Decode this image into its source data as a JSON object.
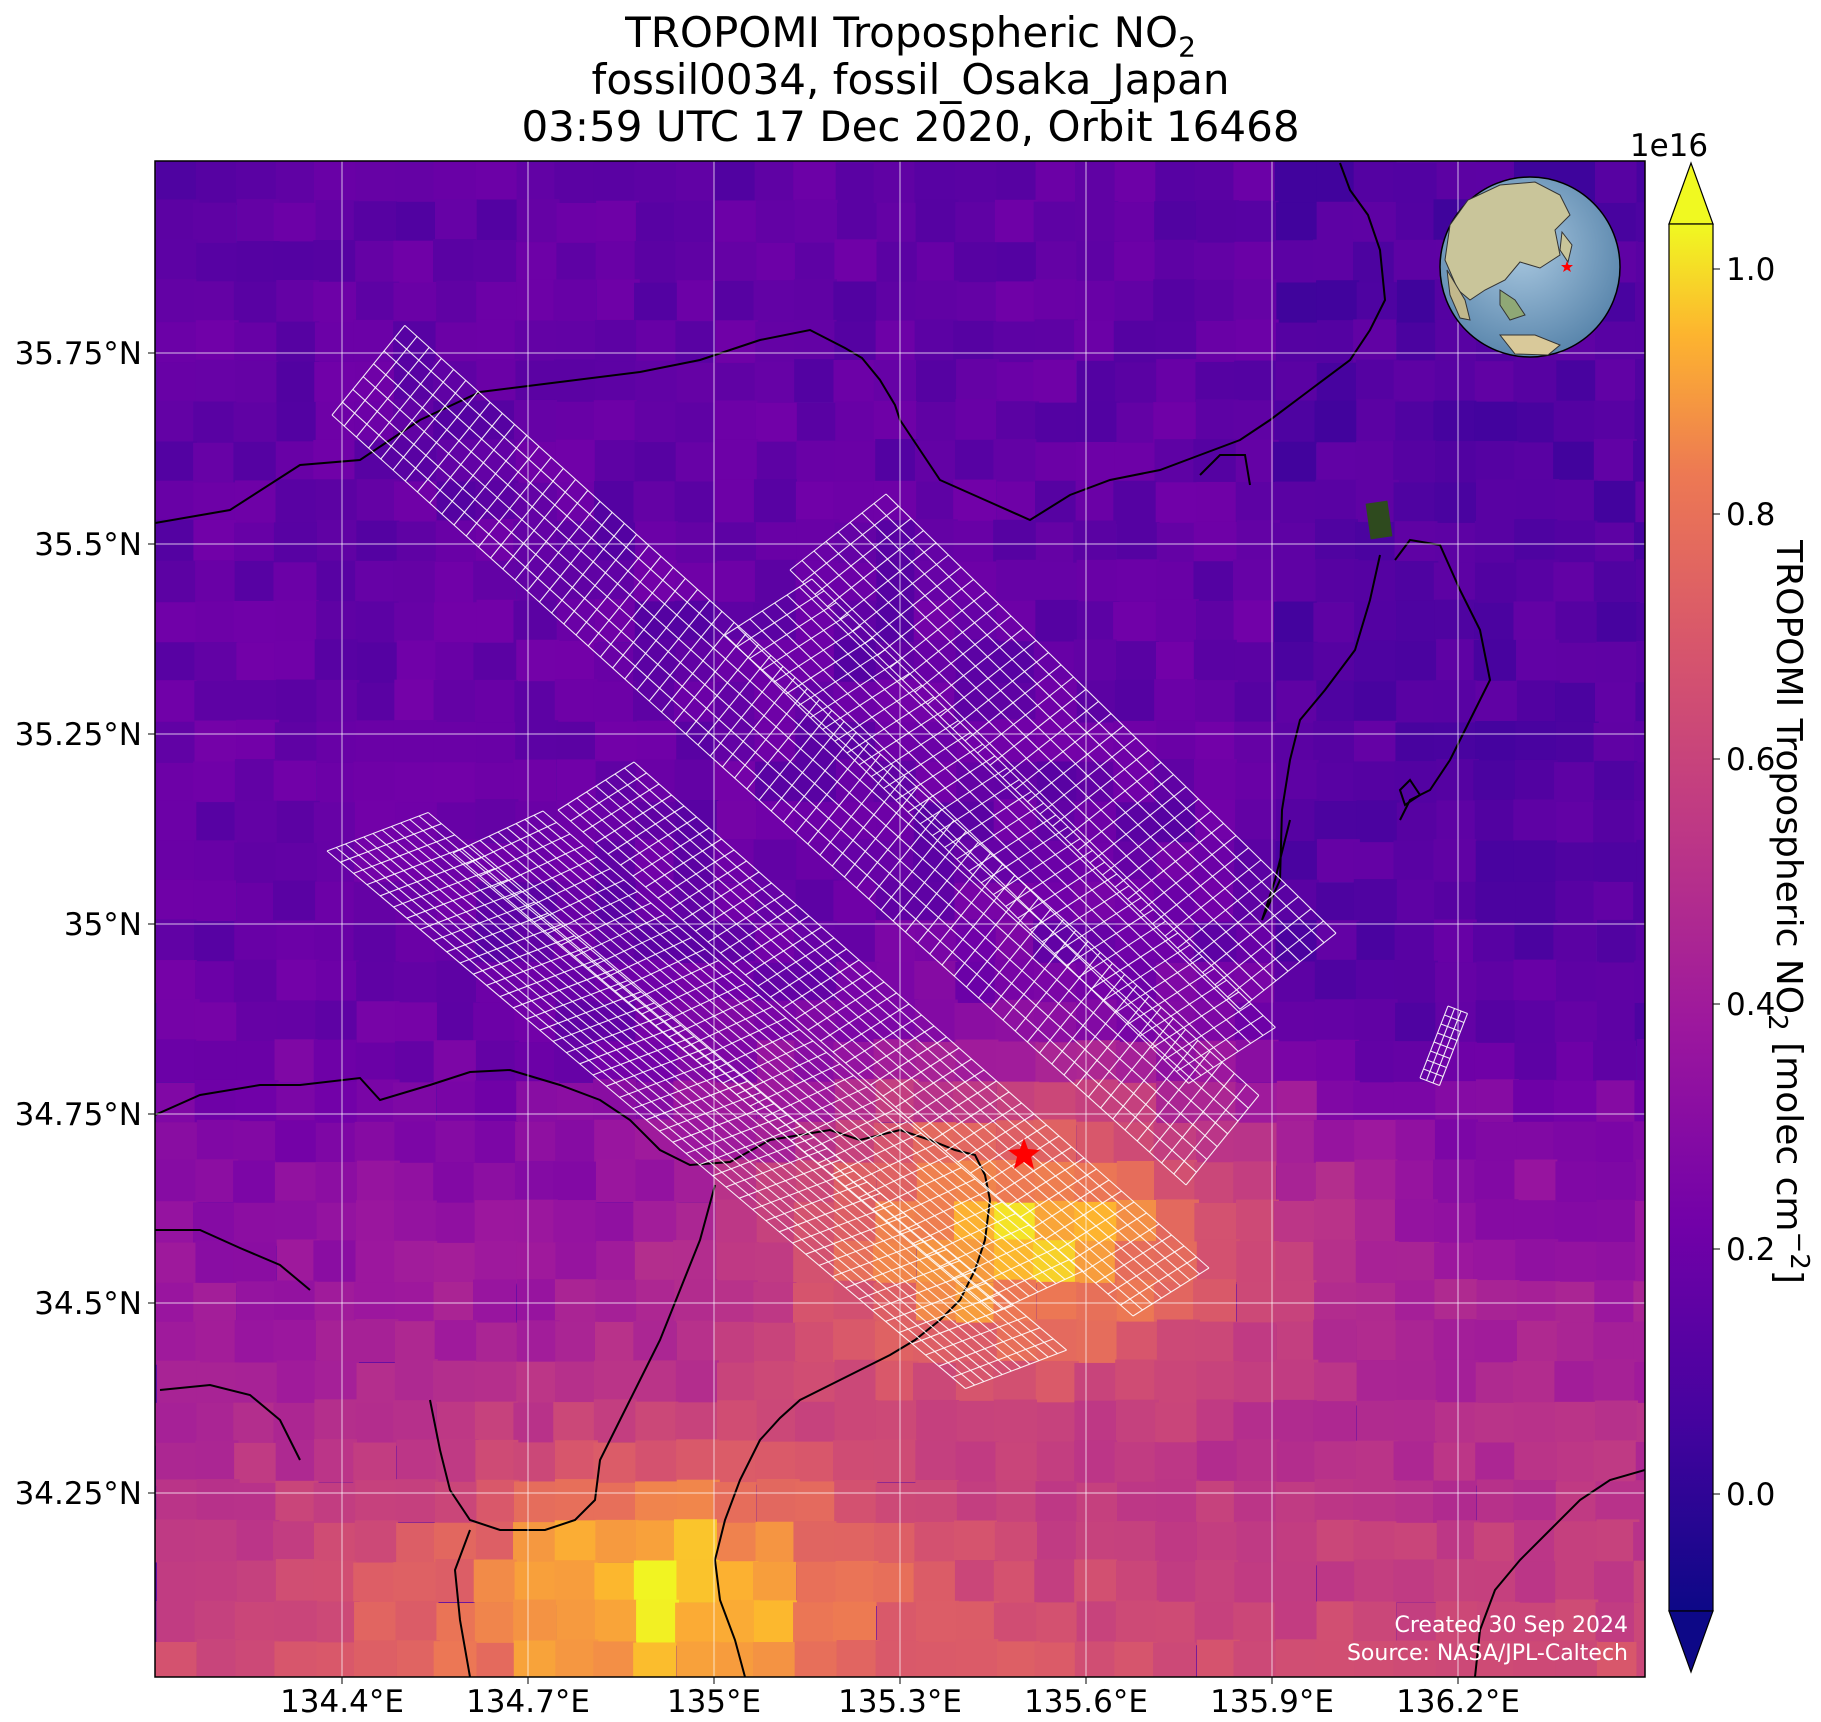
{
  "title": {
    "line1_main": "TROPOMI Tropospheric NO",
    "line1_sub": "2",
    "line2": "fossil0034, fossil_Osaka_Japan",
    "line3": "03:59 UTC 17 Dec 2020, Orbit 16468"
  },
  "map": {
    "lon_ticks": [
      "134.4°E",
      "134.7°E",
      "135°E",
      "135.3°E",
      "135.6°E",
      "135.9°E",
      "136.2°E"
    ],
    "lat_ticks": [
      "35.75°N",
      "35.5°N",
      "35.25°N",
      "35°N",
      "34.75°N",
      "34.5°N",
      "34.25°N"
    ],
    "target_marker": "red-star",
    "target_color": "#ff0000",
    "footprint_grid_color": "#ffffff",
    "inset": "globe-locator",
    "credits": {
      "line1": "Created 30 Sep 2024",
      "line2": "Source: NASA/JPL-Caltech"
    }
  },
  "colorbar": {
    "colormap": "plasma",
    "scale_factor": "1e16",
    "ticks": [
      "1.0",
      "0.8",
      "0.6",
      "0.4",
      "0.2",
      "0.0"
    ],
    "label_main": "TROPOMI Tropospheric NO",
    "label_sub": "2",
    "label_units": " [molec cm",
    "label_exp": "−2",
    "label_close": "]",
    "extend": "both"
  }
}
